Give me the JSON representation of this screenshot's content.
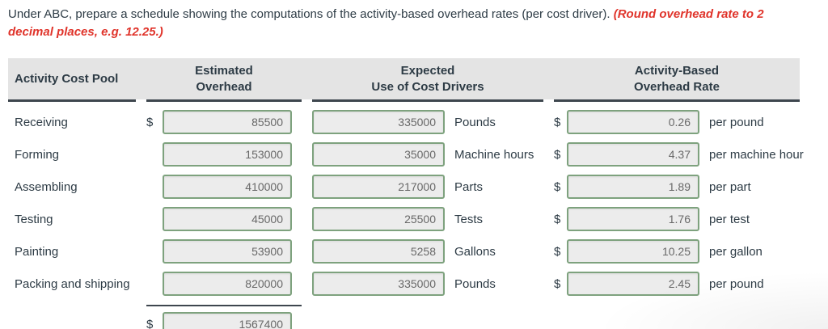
{
  "instructions": {
    "text_main": "Under ABC, prepare a schedule showing the computations of the activity-based overhead rates (per cost driver). ",
    "text_emphasis": "(Round overhead rate to 2 decimal places, e.g. 12.25.)"
  },
  "table": {
    "currency_symbol": "$",
    "headers": {
      "col1": "Activity Cost Pool",
      "col2_line1": "Estimated",
      "col2_line2": "Overhead",
      "col3_line1": "Expected",
      "col3_line2": "Use of Cost Drivers",
      "col4_line1": "Activity-Based",
      "col4_line2": "Overhead Rate"
    },
    "rows": [
      {
        "pool": "Receiving",
        "estimated_overhead": "85500",
        "expected_use": "335000",
        "driver": "Pounds",
        "rate": "0.26",
        "rate_unit": "per pound"
      },
      {
        "pool": "Forming",
        "estimated_overhead": "153000",
        "expected_use": "35000",
        "driver": "Machine hours",
        "rate": "4.37",
        "rate_unit": "per machine hour"
      },
      {
        "pool": "Assembling",
        "estimated_overhead": "410000",
        "expected_use": "217000",
        "driver": "Parts",
        "rate": "1.89",
        "rate_unit": "per part"
      },
      {
        "pool": "Testing",
        "estimated_overhead": "45000",
        "expected_use": "25500",
        "driver": "Tests",
        "rate": "1.76",
        "rate_unit": "per test"
      },
      {
        "pool": "Painting",
        "estimated_overhead": "53900",
        "expected_use": "5258",
        "driver": "Gallons",
        "rate": "10.25",
        "rate_unit": "per gallon"
      },
      {
        "pool": "Packing and shipping",
        "estimated_overhead": "820000",
        "expected_use": "335000",
        "driver": "Pounds",
        "rate": "2.45",
        "rate_unit": "per pound"
      }
    ],
    "total": {
      "value": "1567400"
    }
  },
  "colors": {
    "header_background": "#e4e4e4",
    "rule_dark": "#3e464e",
    "text_dark": "#2d3b45",
    "emphasis_red": "#e0342b",
    "input_background": "#ececec",
    "input_border_green": "#7ea27e",
    "input_text": "#686868"
  }
}
